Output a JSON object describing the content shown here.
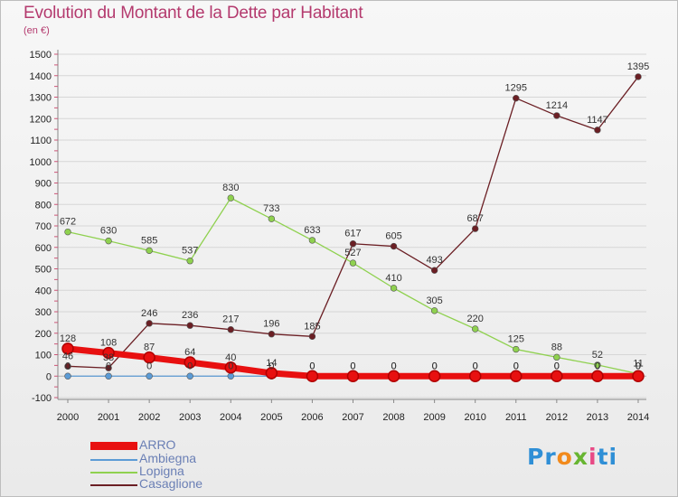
{
  "header": {
    "title": "Evolution du Montant de la Dette par Habitant",
    "unit": "(en €)"
  },
  "logo": {
    "text": "Proxiti"
  },
  "chart_data": {
    "type": "line",
    "title": "Evolution du Montant de la Dette par Habitant",
    "ylabel": "(en €)",
    "x": [
      "2000",
      "2001",
      "2002",
      "2003",
      "2004",
      "2005",
      "2006",
      "2007",
      "2008",
      "2009",
      "2010",
      "2011",
      "2012",
      "2013",
      "2014"
    ],
    "ylim": [
      -100,
      1500
    ],
    "yticks": [
      -100,
      0,
      100,
      200,
      300,
      400,
      500,
      600,
      700,
      800,
      900,
      1000,
      1100,
      1200,
      1300,
      1400,
      1500
    ],
    "grid": "horizontal",
    "legend_position": "bottom-left",
    "series": [
      {
        "name": "Casaglione",
        "color": "#6b1f24",
        "values": [
          46,
          38,
          246,
          236,
          217,
          196,
          185,
          617,
          605,
          493,
          687,
          1295,
          1214,
          1147,
          1395
        ],
        "labels": [
          "46",
          "38",
          "246",
          "236",
          "217",
          "196",
          "185",
          "617",
          "605",
          "493",
          "687",
          "1295",
          "1214",
          "1147",
          "1395"
        ]
      },
      {
        "name": "Lopigna",
        "color": "#8fd14f",
        "values": [
          672,
          630,
          585,
          537,
          830,
          733,
          633,
          527,
          410,
          305,
          220,
          125,
          88,
          52,
          11
        ],
        "labels": [
          "672",
          "630",
          "585",
          "537",
          "830",
          "733",
          "633",
          "527",
          "410",
          "305",
          "220",
          "125",
          "88",
          "52",
          "11"
        ]
      },
      {
        "name": "Ambiegna",
        "color": "#5b9bd5",
        "values": [
          0,
          0,
          0,
          0,
          0,
          0,
          0,
          0,
          0,
          0,
          0,
          0,
          0,
          0,
          0
        ],
        "labels": [
          "0",
          "0",
          "0",
          "0",
          "0",
          "0",
          "0",
          "0",
          "0",
          "0",
          "0",
          "0",
          "0",
          "0",
          "0"
        ]
      },
      {
        "name": "ARRO",
        "color": "#e81010",
        "values": [
          128,
          108,
          87,
          64,
          40,
          14,
          0,
          0,
          0,
          0,
          0,
          0,
          0,
          0,
          0
        ],
        "labels": [
          "128",
          "108",
          "87",
          "64",
          "40",
          "14",
          "0",
          "0",
          "0",
          "0",
          "0",
          "0",
          "0",
          "0",
          "0"
        ]
      }
    ],
    "legend": [
      "ARRO",
      "Ambiegna",
      "Lopigna",
      "Casaglione"
    ]
  }
}
